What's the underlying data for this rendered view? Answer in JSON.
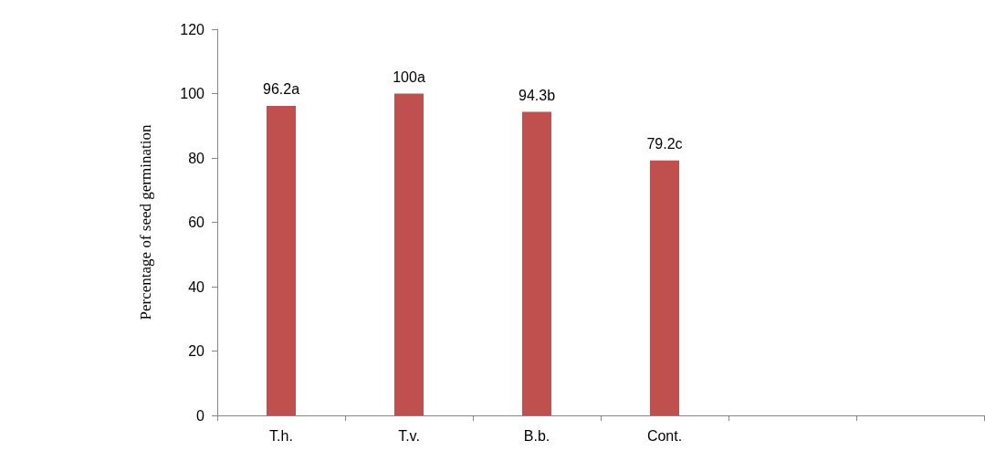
{
  "chart_data": {
    "type": "bar",
    "ylabel": "Percentage of seed germination",
    "categories": [
      "T.h.",
      "T.v.",
      "B.b.",
      "Cont.",
      null,
      null
    ],
    "values": [
      96.2,
      100,
      94.3,
      79.2,
      null,
      null
    ],
    "value_labels": [
      "96.2a",
      "100a",
      "94.3b",
      "79.2c",
      null,
      null
    ],
    "color": "#c0504d",
    "ylim": [
      0,
      120
    ],
    "yticks": [
      0,
      20,
      40,
      60,
      80,
      100,
      120
    ],
    "grid": false
  }
}
